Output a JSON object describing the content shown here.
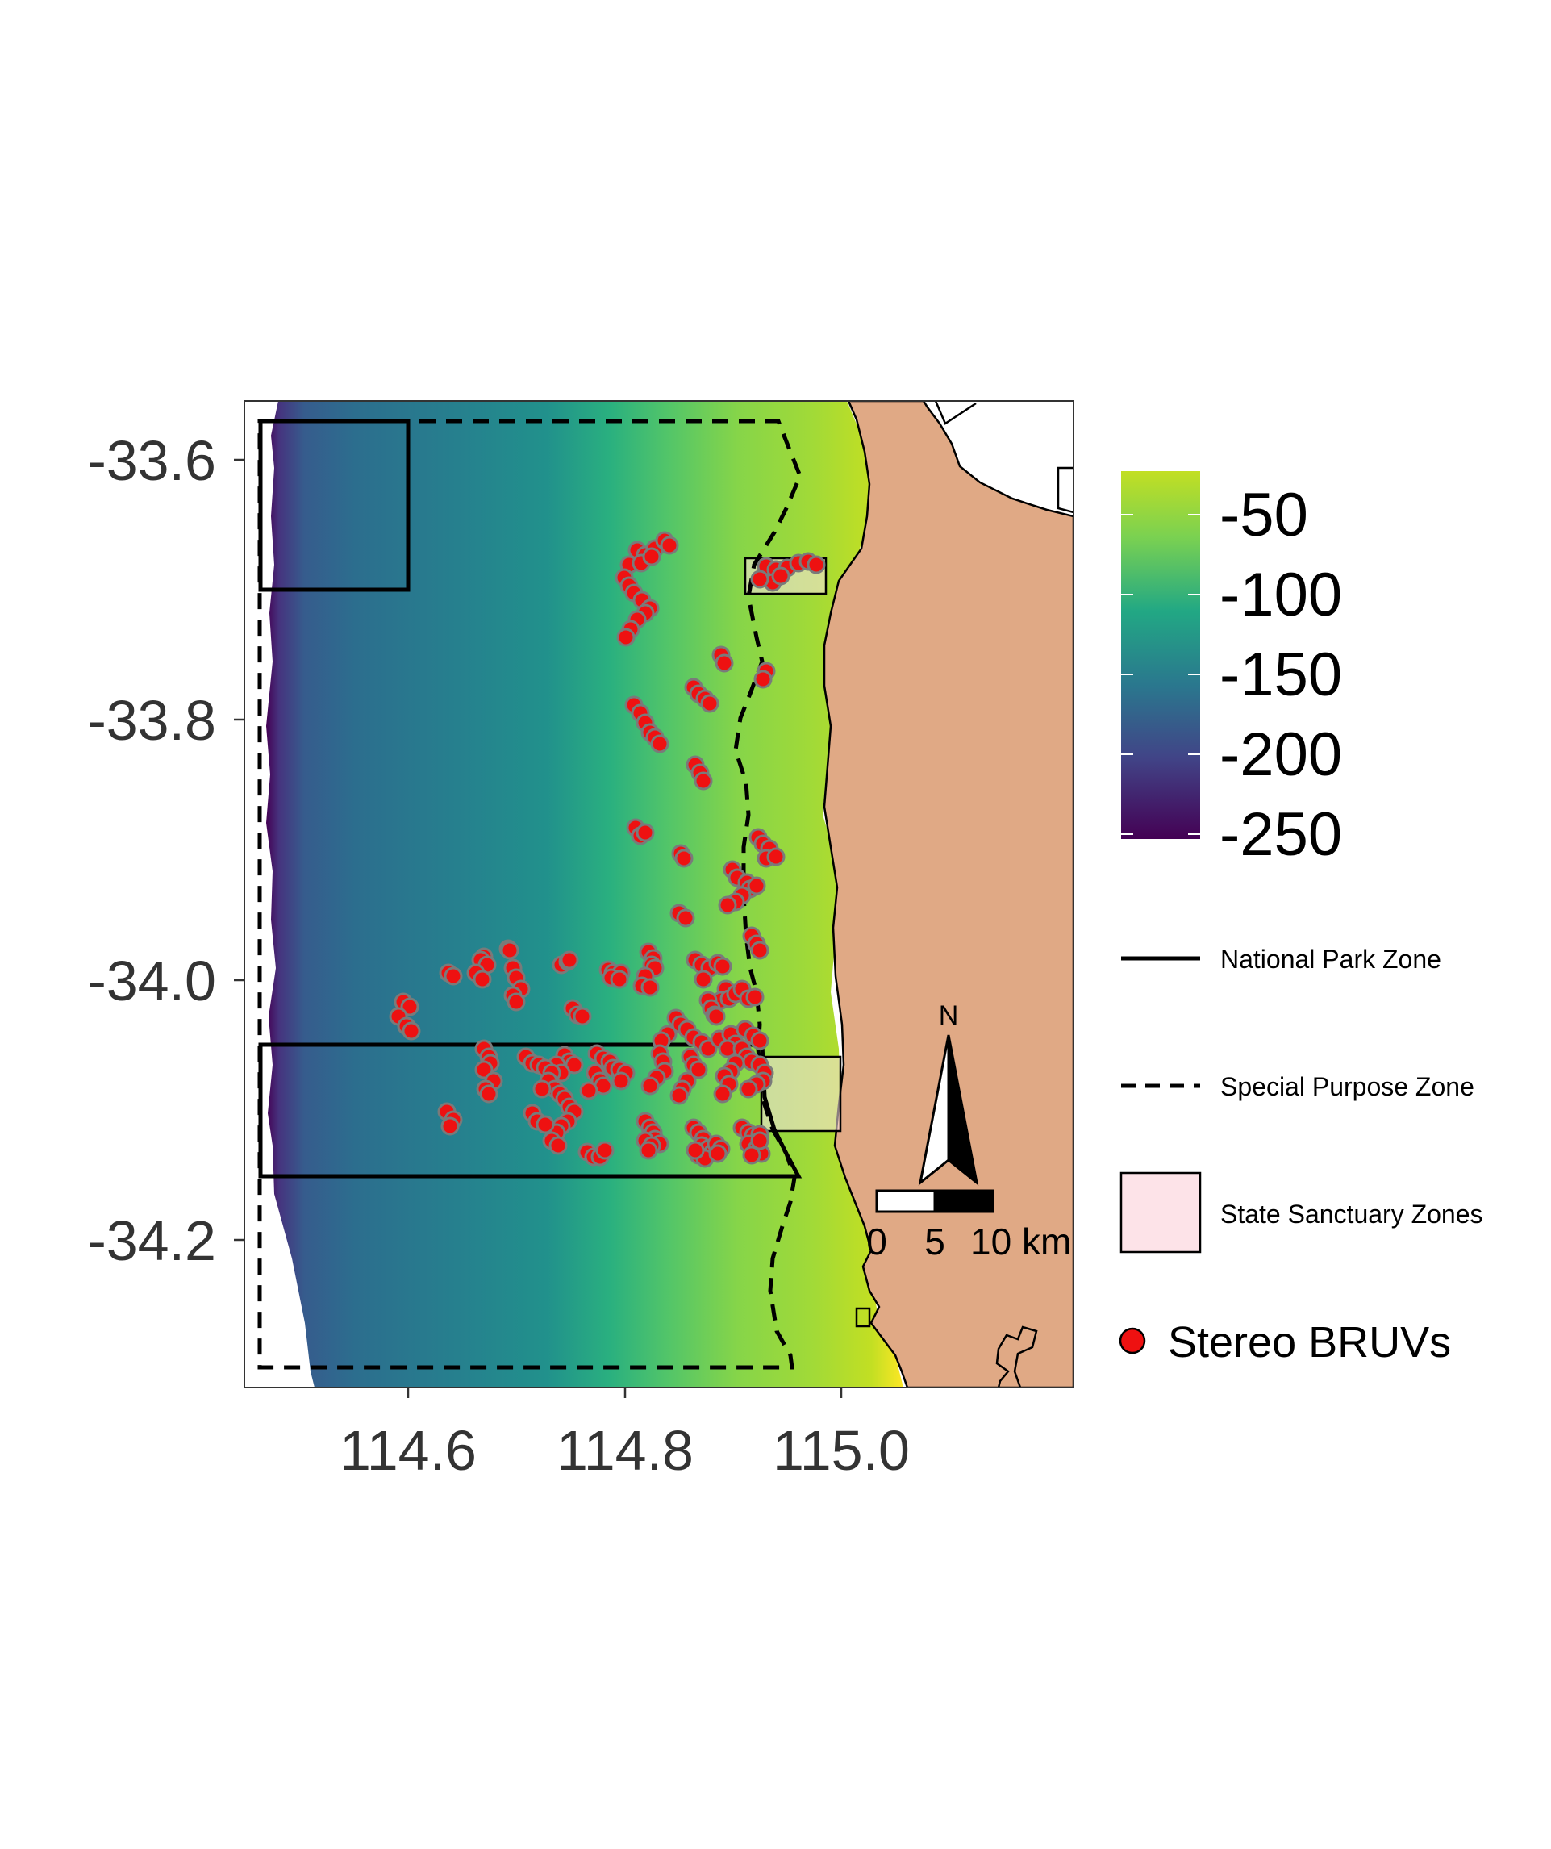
{
  "map": {
    "x_ticks": [
      "114.6",
      "114.8",
      "115.0"
    ],
    "y_ticks": [
      "-33.6",
      "-33.8",
      "-34.0",
      "-34.2"
    ],
    "colors": {
      "land": "#e0a985",
      "sanctuary_fill": "#fde3e8",
      "points": "#ee1111",
      "point_outline": "#7a7a7a",
      "depth_deep": "#440154",
      "depth_mid": "#21908c",
      "depth_shallow": "#fde725"
    }
  },
  "legend": {
    "depth": {
      "labels": [
        "-50",
        "-100",
        "-150",
        "-200",
        "-250"
      ]
    },
    "national_park_label": "National Park Zone",
    "special_purpose_label": "Special Purpose Zone",
    "state_sanctuary_label": "State Sanctuary Zones",
    "bruv_label": "Stereo BRUVs"
  },
  "scale_bar": {
    "labels": [
      "0",
      "5",
      "10 km"
    ]
  },
  "north_arrow": {
    "label": "N"
  }
}
